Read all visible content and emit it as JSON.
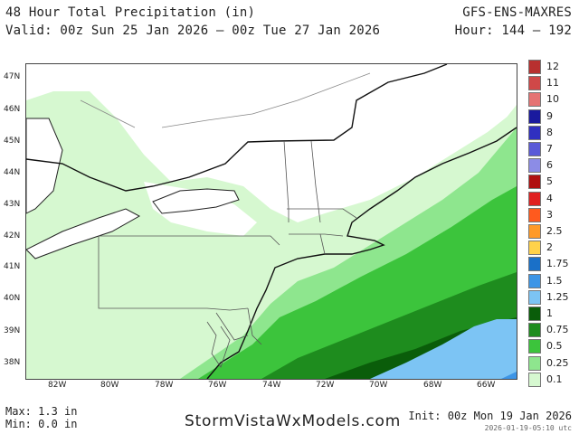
{
  "header": {
    "title": "48 Hour Total Precipitation (in)",
    "valid": "Valid: 00z Sun 25 Jan 2026 – 00z Tue 27 Jan 2026",
    "model": "GFS-ENS-MAXRES",
    "hour": "Hour: 144 – 192"
  },
  "map": {
    "lat_labels": [
      "47N",
      "46N",
      "45N",
      "44N",
      "43N",
      "42N",
      "41N",
      "40N",
      "39N",
      "38N"
    ],
    "lon_labels": [
      "82W",
      "80W",
      "78W",
      "76W",
      "74W",
      "72W",
      "70W",
      "68W",
      "66W"
    ]
  },
  "legend": {
    "levels": [
      {
        "label": "12",
        "color": "#b8302f"
      },
      {
        "label": "11",
        "color": "#d04848"
      },
      {
        "label": "10",
        "color": "#e57373"
      },
      {
        "label": "9",
        "color": "#1a1a9e"
      },
      {
        "label": "8",
        "color": "#3030c0"
      },
      {
        "label": "7",
        "color": "#5a5ad8"
      },
      {
        "label": "6",
        "color": "#8c8ce6"
      },
      {
        "label": "5",
        "color": "#b01010"
      },
      {
        "label": "4",
        "color": "#e02020"
      },
      {
        "label": "3",
        "color": "#ff5a1e"
      },
      {
        "label": "2.5",
        "color": "#ff9a28"
      },
      {
        "label": "2",
        "color": "#ffd24a"
      },
      {
        "label": "1.75",
        "color": "#1a70c8"
      },
      {
        "label": "1.5",
        "color": "#3d95e6"
      },
      {
        "label": "1.25",
        "color": "#7cc4f4"
      },
      {
        "label": "1",
        "color": "#0a5d0a"
      },
      {
        "label": "0.75",
        "color": "#1e8c1e"
      },
      {
        "label": "0.5",
        "color": "#3cc43c"
      },
      {
        "label": "0.25",
        "color": "#8ee68e"
      },
      {
        "label": "0.1",
        "color": "#d6f8d0"
      }
    ]
  },
  "footer": {
    "max": "Max: 1.3 in",
    "min": "Min: 0.0 in",
    "site": "StormVistaWxModels.com",
    "init": "Init: 00z Mon 19 Jan 2026",
    "stamp": "2026-01-19-05:10 utc"
  }
}
